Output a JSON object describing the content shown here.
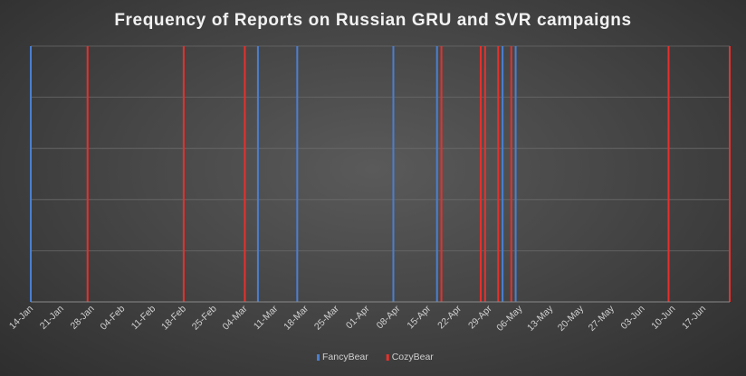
{
  "chart_data": {
    "type": "bar",
    "title": "Frequency of Reports on Russian GRU and SVR campaigns",
    "xlabel": "",
    "ylabel": "",
    "x_axis": {
      "type": "date",
      "range": [
        "2019-01-14",
        "2019-06-23"
      ],
      "tick_labels": [
        "14-Jan",
        "21-Jan",
        "28-Jan",
        "04-Feb",
        "11-Feb",
        "18-Feb",
        "25-Feb",
        "04-Mar",
        "11-Mar",
        "18-Mar",
        "25-Mar",
        "01-Apr",
        "08-Apr",
        "15-Apr",
        "22-Apr",
        "29-Apr",
        "06-May",
        "13-May",
        "20-May",
        "27-May",
        "03-Jun",
        "10-Jun",
        "17-Jun"
      ]
    },
    "y_axis": {
      "range": [
        0,
        1
      ],
      "tick_labels_shown": false
    },
    "grid": true,
    "legend_position": "bottom",
    "series": [
      {
        "name": "FancyBear",
        "color": "#4a7fd0",
        "dates": [
          "2019-01-14",
          "2019-03-07",
          "2019-03-16",
          "2019-04-07",
          "2019-04-17",
          "2019-05-02",
          "2019-05-05"
        ],
        "values": [
          1,
          1,
          1,
          1,
          1,
          1,
          1
        ]
      },
      {
        "name": "CozyBear",
        "color": "#e8302c",
        "dates": [
          "2019-01-27",
          "2019-02-18",
          "2019-03-04",
          "2019-04-18",
          "2019-04-27",
          "2019-04-28",
          "2019-05-01",
          "2019-05-04",
          "2019-06-09",
          "2019-06-23"
        ],
        "values": [
          1,
          1,
          1,
          1,
          1,
          1,
          1,
          1,
          1,
          1
        ]
      }
    ]
  }
}
